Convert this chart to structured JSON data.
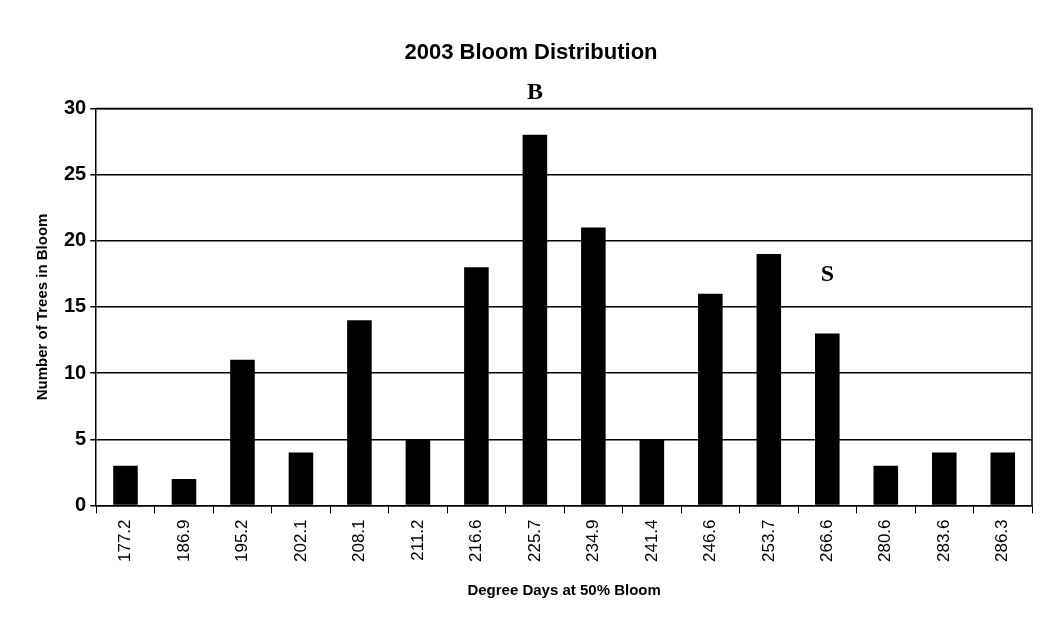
{
  "chart_data": {
    "type": "bar",
    "title": "2003 Bloom Distribution",
    "xlabel": "Degree Days at 50% Bloom",
    "ylabel": "Number of Trees in Bloom",
    "categories": [
      "177.2",
      "186.9",
      "195.2",
      "202.1",
      "208.1",
      "211.2",
      "216.6",
      "225.7",
      "234.9",
      "241.4",
      "246.6",
      "253.7",
      "266.6",
      "280.6",
      "283.6",
      "286.3"
    ],
    "values": [
      3,
      2,
      11,
      4,
      14,
      5,
      18,
      28,
      21,
      5,
      16,
      19,
      13,
      3,
      4,
      4
    ],
    "color": "#000000",
    "ylim": [
      0,
      30
    ],
    "yticks": [
      0,
      5,
      10,
      15,
      20,
      25,
      30
    ],
    "grid": "y",
    "legend": false,
    "annotations": [
      "B",
      "S"
    ]
  }
}
